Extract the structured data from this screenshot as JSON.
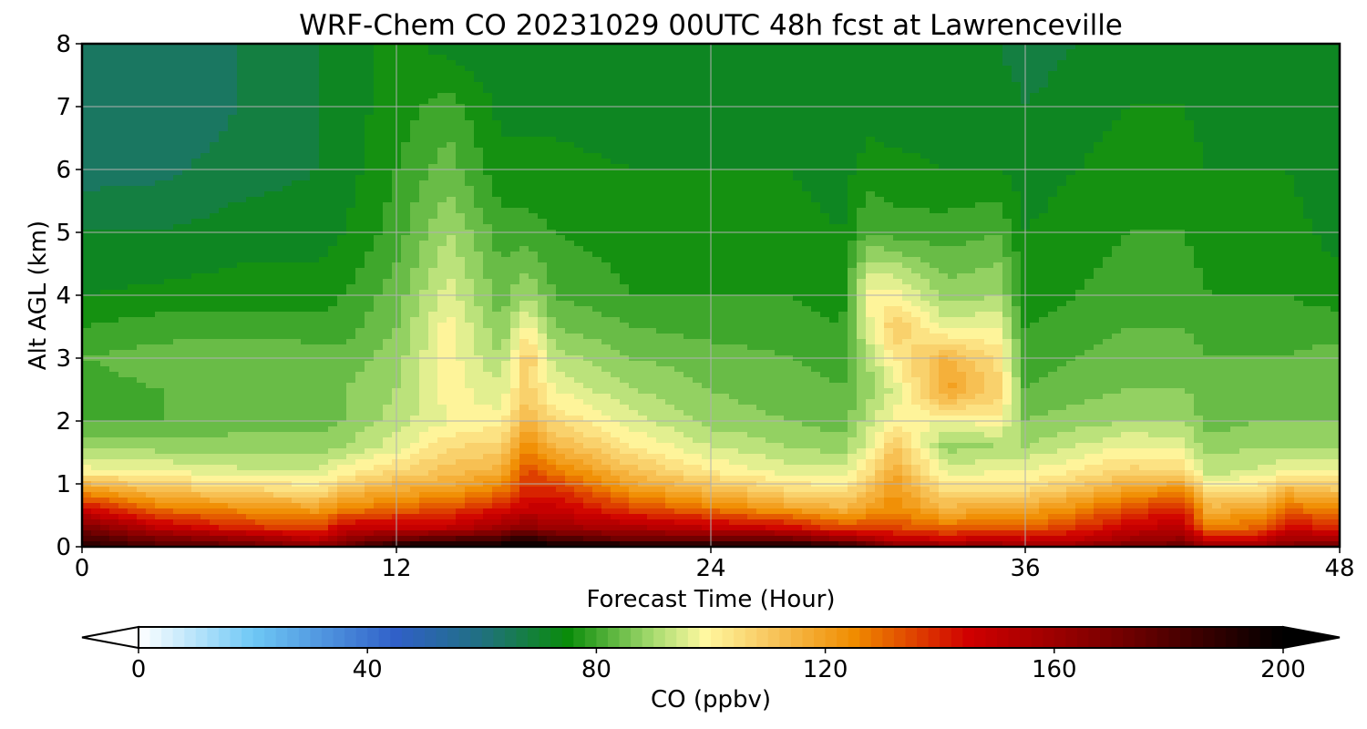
{
  "chart_data": {
    "type": "heatmap",
    "title": "WRF-Chem CO  20231029 00UTC 48h fcst at Lawrenceville",
    "xlabel": "Forecast Time (Hour)",
    "ylabel": "Alt AGL (km)",
    "xlim": [
      0,
      48
    ],
    "ylim": [
      0,
      8
    ],
    "x_ticks": [
      0,
      12,
      24,
      36,
      48
    ],
    "y_ticks": [
      0,
      1,
      2,
      3,
      4,
      5,
      6,
      7,
      8
    ],
    "grid": true,
    "colorbar": {
      "label": "CO  (ppbv)",
      "range": [
        0,
        200
      ],
      "ticks": [
        0,
        40,
        80,
        120,
        160,
        200
      ],
      "extend": "both",
      "stops": [
        {
          "v": 0,
          "c": "#ffffff"
        },
        {
          "v": 20,
          "c": "#6fc8f5"
        },
        {
          "v": 45,
          "c": "#3060c8"
        },
        {
          "v": 60,
          "c": "#207080"
        },
        {
          "v": 75,
          "c": "#0a8c0a"
        },
        {
          "v": 90,
          "c": "#a8dc70"
        },
        {
          "v": 99,
          "c": "#fff8a0"
        },
        {
          "v": 110,
          "c": "#f8c860"
        },
        {
          "v": 125,
          "c": "#f08c00"
        },
        {
          "v": 145,
          "c": "#d00000"
        },
        {
          "v": 170,
          "c": "#7a0000"
        },
        {
          "v": 200,
          "c": "#000000"
        }
      ]
    },
    "time_hours": [
      0,
      3,
      6,
      9,
      10,
      12,
      14,
      16,
      17,
      18,
      21,
      24,
      27,
      29,
      30,
      31,
      33,
      35,
      36,
      38,
      40,
      42,
      43,
      45,
      46,
      48
    ],
    "altitude_km": [
      0,
      0.1,
      0.3,
      0.6,
      0.9,
      1.2,
      1.6,
      2,
      2.5,
      3,
      3.5,
      4,
      5,
      6,
      7,
      8
    ],
    "co_ppbv": [
      [
        190,
        185,
        170,
        145,
        122,
        100,
        88,
        82,
        80,
        82,
        78,
        74,
        70,
        64,
        62,
        62
      ],
      [
        182,
        172,
        150,
        128,
        112,
        98,
        88,
        82,
        82,
        84,
        80,
        75,
        70,
        65,
        62,
        63
      ],
      [
        178,
        165,
        140,
        124,
        108,
        95,
        88,
        84,
        84,
        85,
        80,
        76,
        72,
        68,
        66,
        66
      ],
      [
        168,
        152,
        135,
        120,
        104,
        95,
        88,
        84,
        86,
        84,
        80,
        76,
        72,
        70,
        70,
        70
      ],
      [
        170,
        165,
        148,
        126,
        112,
        100,
        90,
        86,
        86,
        84,
        80,
        78,
        74,
        72,
        72,
        72
      ],
      [
        200,
        175,
        150,
        130,
        118,
        106,
        96,
        92,
        90,
        88,
        86,
        84,
        80,
        78,
        76,
        76
      ],
      [
        200,
        182,
        150,
        135,
        120,
        112,
        105,
        98,
        100,
        100,
        100,
        96,
        90,
        84,
        80,
        72
      ],
      [
        200,
        185,
        160,
        142,
        128,
        116,
        108,
        100,
        95,
        90,
        86,
        84,
        80,
        75,
        73,
        70
      ],
      [
        200,
        195,
        165,
        148,
        140,
        135,
        125,
        115,
        108,
        110,
        100,
        90,
        80,
        75,
        73,
        70
      ],
      [
        200,
        185,
        160,
        148,
        140,
        128,
        115,
        106,
        98,
        92,
        86,
        82,
        78,
        75,
        73,
        70
      ],
      [
        200,
        175,
        155,
        135,
        122,
        112,
        102,
        96,
        90,
        86,
        82,
        78,
        76,
        74,
        72,
        70
      ],
      [
        200,
        175,
        150,
        128,
        114,
        102,
        94,
        88,
        86,
        84,
        80,
        78,
        76,
        74,
        72,
        70
      ],
      [
        200,
        175,
        145,
        120,
        106,
        96,
        90,
        86,
        84,
        82,
        80,
        78,
        76,
        74,
        72,
        70
      ],
      [
        195,
        165,
        135,
        115,
        104,
        95,
        88,
        84,
        82,
        80,
        78,
        76,
        74,
        72,
        70,
        70
      ],
      [
        185,
        160,
        135,
        120,
        112,
        104,
        96,
        92,
        88,
        90,
        96,
        100,
        82,
        76,
        72,
        70
      ],
      [
        170,
        150,
        135,
        125,
        122,
        118,
        110,
        100,
        95,
        102,
        110,
        100,
        80,
        75,
        72,
        70
      ],
      [
        165,
        148,
        130,
        115,
        105,
        96,
        88,
        98,
        120,
        115,
        96,
        88,
        80,
        74,
        72,
        70
      ],
      [
        165,
        150,
        132,
        118,
        106,
        98,
        90,
        100,
        108,
        104,
        98,
        90,
        82,
        74,
        72,
        70
      ],
      [
        160,
        148,
        132,
        118,
        106,
        98,
        90,
        86,
        82,
        80,
        78,
        76,
        74,
        72,
        70,
        68
      ],
      [
        165,
        150,
        138,
        125,
        112,
        102,
        94,
        88,
        84,
        82,
        80,
        78,
        76,
        74,
        72,
        70
      ],
      [
        175,
        160,
        148,
        135,
        120,
        108,
        98,
        90,
        86,
        84,
        82,
        80,
        78,
        76,
        74,
        72
      ],
      [
        175,
        165,
        152,
        140,
        125,
        106,
        96,
        90,
        86,
        84,
        82,
        80,
        78,
        76,
        74,
        72
      ],
      [
        165,
        145,
        126,
        115,
        104,
        92,
        88,
        84,
        84,
        82,
        80,
        78,
        76,
        74,
        72,
        72
      ],
      [
        165,
        148,
        132,
        120,
        106,
        95,
        90,
        86,
        84,
        82,
        80,
        78,
        76,
        74,
        72,
        72
      ],
      [
        170,
        160,
        145,
        130,
        115,
        98,
        90,
        86,
        84,
        82,
        80,
        78,
        76,
        74,
        72,
        72
      ],
      [
        175,
        160,
        140,
        125,
        110,
        98,
        90,
        86,
        84,
        84,
        80,
        76,
        72,
        70,
        70,
        70
      ]
    ]
  }
}
